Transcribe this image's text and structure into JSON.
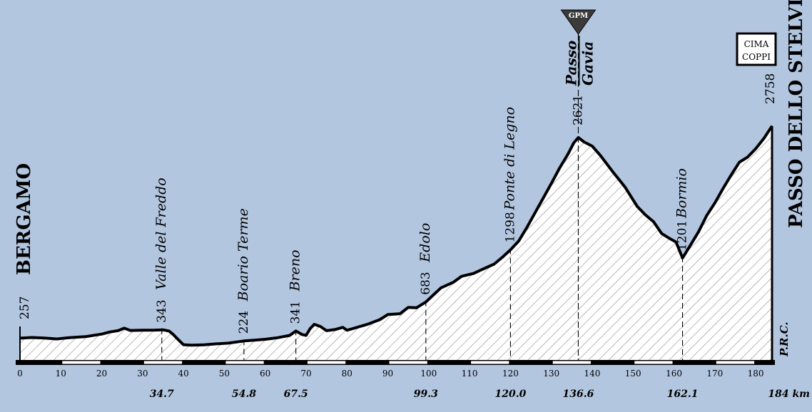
{
  "chart_data": {
    "type": "area",
    "title": "",
    "xlabel": "",
    "ylabel": "",
    "x_unit": "km",
    "xlim": [
      0,
      184
    ],
    "ylim": [
      0,
      2800
    ],
    "x_ticks": [
      "0",
      "10",
      "20",
      "30",
      "40",
      "50",
      "60",
      "70",
      "80",
      "90",
      "100",
      "110",
      "120",
      "130",
      "140",
      "150",
      "160",
      "170",
      "180"
    ],
    "start_name": "BERGAMO",
    "finish_name": "PASSO DELLO STELVIO",
    "credit": "P.R.C.",
    "gpm_badge": "GPM",
    "cima_coppi": [
      "CIMA",
      "COPPI"
    ],
    "total_label": "184 km",
    "waypoints": [
      {
        "km": 0,
        "km_label": "",
        "alt": "257",
        "name": ""
      },
      {
        "km": 34.7,
        "km_label": "34.7",
        "alt": "343",
        "name": "Valle del Freddo"
      },
      {
        "km": 54.8,
        "km_label": "54.8",
        "alt": "224",
        "name": "Boario Terme"
      },
      {
        "km": 67.5,
        "km_label": "67.5",
        "alt": "341",
        "name": "Breno"
      },
      {
        "km": 99.3,
        "km_label": "99.3",
        "alt": "683",
        "name": "Edolo"
      },
      {
        "km": 120.0,
        "km_label": "120.0",
        "alt": "1298",
        "name": "Ponte di Legno"
      },
      {
        "km": 136.6,
        "km_label": "136.6",
        "alt": "2621",
        "name": "Passo Gavia"
      },
      {
        "km": 162.1,
        "km_label": "162.1",
        "alt": "1201",
        "name": "Bormio"
      },
      {
        "km": 184,
        "km_label": "",
        "alt": "2758",
        "name": ""
      }
    ],
    "profile": [
      [
        0,
        257
      ],
      [
        3,
        265
      ],
      [
        6,
        258
      ],
      [
        9,
        248
      ],
      [
        12,
        262
      ],
      [
        16,
        275
      ],
      [
        20,
        305
      ],
      [
        22,
        330
      ],
      [
        24,
        345
      ],
      [
        25.5,
        375
      ],
      [
        27,
        348
      ],
      [
        30,
        350
      ],
      [
        33,
        352
      ],
      [
        35,
        355
      ],
      [
        36.5,
        340
      ],
      [
        37.5,
        300
      ],
      [
        38.5,
        250
      ],
      [
        40,
        180
      ],
      [
        42,
        175
      ],
      [
        45,
        178
      ],
      [
        48,
        190
      ],
      [
        51,
        198
      ],
      [
        54.8,
        224
      ],
      [
        57,
        232
      ],
      [
        60,
        244
      ],
      [
        63,
        262
      ],
      [
        66,
        290
      ],
      [
        67.5,
        341
      ],
      [
        69,
        300
      ],
      [
        70,
        290
      ],
      [
        71,
        370
      ],
      [
        72,
        420
      ],
      [
        73.5,
        395
      ],
      [
        75,
        345
      ],
      [
        77,
        358
      ],
      [
        79,
        385
      ],
      [
        80,
        350
      ],
      [
        82,
        378
      ],
      [
        85,
        420
      ],
      [
        88,
        475
      ],
      [
        90,
        535
      ],
      [
        93,
        545
      ],
      [
        95,
        620
      ],
      [
        97,
        615
      ],
      [
        99.3,
        683
      ],
      [
        101,
        760
      ],
      [
        103,
        850
      ],
      [
        106,
        915
      ],
      [
        108,
        985
      ],
      [
        111,
        1020
      ],
      [
        113,
        1065
      ],
      [
        116,
        1130
      ],
      [
        118,
        1210
      ],
      [
        120,
        1298
      ],
      [
        122,
        1400
      ],
      [
        124,
        1560
      ],
      [
        127,
        1820
      ],
      [
        130,
        2080
      ],
      [
        132,
        2260
      ],
      [
        134,
        2420
      ],
      [
        135.5,
        2560
      ],
      [
        136.6,
        2621
      ],
      [
        138,
        2570
      ],
      [
        140,
        2520
      ],
      [
        142,
        2410
      ],
      [
        145,
        2220
      ],
      [
        148,
        2040
      ],
      [
        151,
        1810
      ],
      [
        153,
        1710
      ],
      [
        155,
        1630
      ],
      [
        157,
        1490
      ],
      [
        159,
        1430
      ],
      [
        160.5,
        1390
      ],
      [
        162.1,
        1201
      ],
      [
        164,
        1350
      ],
      [
        166,
        1510
      ],
      [
        168,
        1700
      ],
      [
        170,
        1850
      ],
      [
        172,
        2020
      ],
      [
        174,
        2180
      ],
      [
        176,
        2330
      ],
      [
        178,
        2390
      ],
      [
        180,
        2490
      ],
      [
        182,
        2610
      ],
      [
        184,
        2758
      ]
    ]
  }
}
